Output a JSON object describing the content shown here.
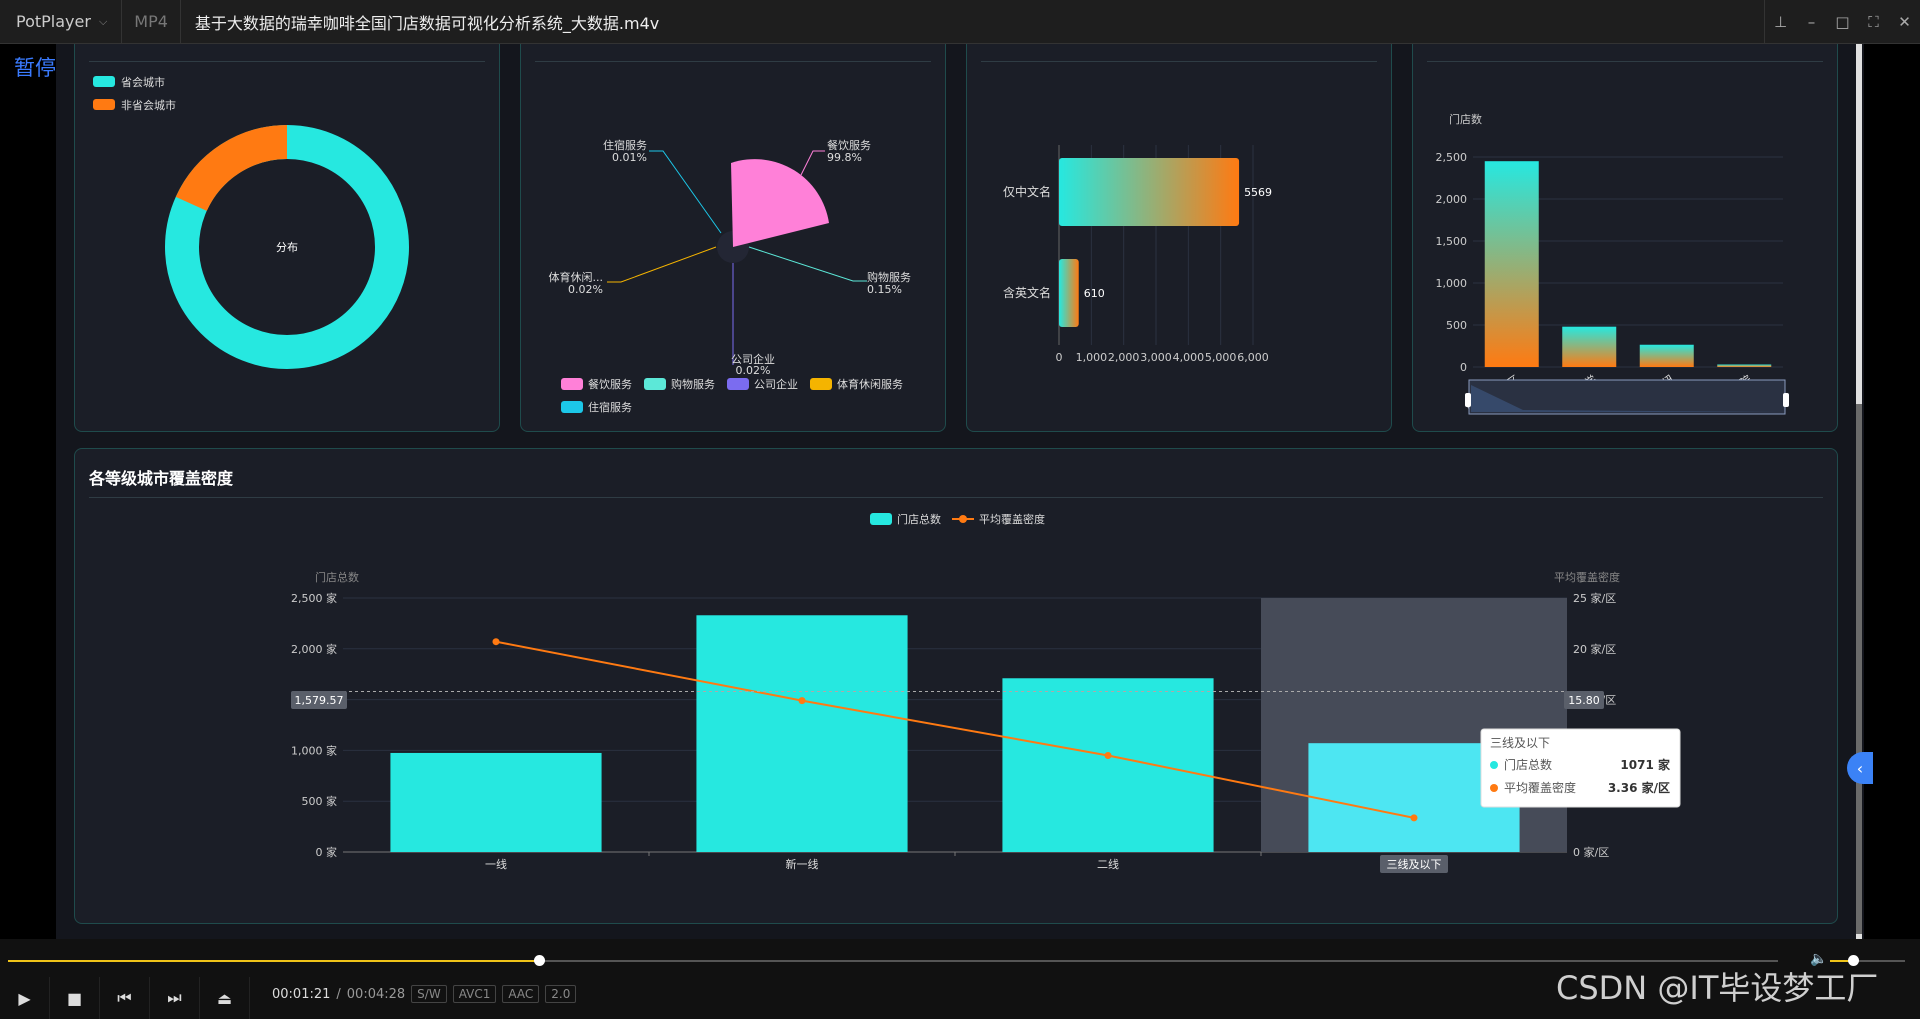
{
  "window": {
    "app_name": "PotPlayer",
    "format": "MP4",
    "title": "基于大数据的瑞幸咖啡全国门店数据可视化分析系统_大数据.m4v",
    "status": "暂停"
  },
  "panels": {
    "donut": {
      "legend": [
        "省会城市",
        "非省会城市"
      ],
      "center_label": "分布",
      "colors": [
        "#26e8e0",
        "#ff7a12"
      ]
    },
    "rose": {
      "labels": [
        {
          "name": "住宿服务",
          "pct": "0.01%"
        },
        {
          "name": "餐饮服务",
          "pct": "99.8%"
        },
        {
          "name": "体育休闲...",
          "pct": "0.02%"
        },
        {
          "name": "购物服务",
          "pct": "0.15%"
        },
        {
          "name": "公司企业",
          "pct": "0.02%"
        }
      ],
      "legend": [
        "餐饮服务",
        "购物服务",
        "公司企业",
        "体育休闲服务",
        "住宿服务"
      ],
      "legend_colors": [
        "#ff80d8",
        "#5ce8d8",
        "#7b6cf0",
        "#f5b400",
        "#1cc7e8"
      ]
    },
    "hbar": {
      "categories": [
        "仅中文名",
        "含英文名"
      ],
      "values": [
        5569,
        610
      ],
      "ticks": [
        "0",
        "1,000",
        "2,000",
        "3,000",
        "4,000",
        "5,000",
        "6,000"
      ]
    },
    "vbar": {
      "axis_name": "门店数",
      "ticks": [
        "0",
        "500",
        "1,000",
        "1,500",
        "2,000",
        "2,500"
      ],
      "categories": [
        "写字楼/园区",
        "大学",
        "交通枢纽",
        "医院"
      ],
      "values": [
        2450,
        480,
        265,
        30
      ]
    }
  },
  "chart_data": {
    "type": "bar",
    "title": "各等级城市覆盖密度",
    "categories": [
      "一线",
      "新一线",
      "二线",
      "三线及以下"
    ],
    "series": [
      {
        "name": "门店总数",
        "type": "bar",
        "values": [
          975,
          2330,
          1710,
          1071
        ]
      },
      {
        "name": "平均覆盖密度",
        "type": "line",
        "values": [
          20.7,
          14.9,
          9.5,
          3.36
        ]
      }
    ],
    "ylabel_left": "门店总数",
    "ylabel_right": "平均覆盖密度",
    "ylim_left": [
      0,
      2500
    ],
    "ylim_right": [
      0,
      25
    ],
    "left_ticks": [
      "0 家",
      "500 家",
      "1,000 家",
      "1,500 家",
      "2,000 家",
      "2,500 家"
    ],
    "right_ticks": [
      "0 家/区",
      "5 家/区",
      "10 家/区",
      "15 家/区",
      "20 家/区",
      "25 家/区"
    ],
    "crosshair_left_label": "1,579.57",
    "crosshair_right_label": "15.80",
    "highlighted_category": "三线及以下",
    "tooltip": {
      "title": "三线及以下",
      "rows": [
        {
          "name": "门店总数",
          "value": "1071 家"
        },
        {
          "name": "平均覆盖密度",
          "value": "3.36 家/区"
        }
      ]
    },
    "colors": {
      "bar": "#26e8e0",
      "bar_highlight": "#4de6f2",
      "line": "#ff7a12"
    }
  },
  "player": {
    "time_current": "00:01:21",
    "time_separator": "/",
    "time_total": "00:04:28",
    "progress": 0.3,
    "volume": 0.3,
    "badges": [
      "S/W",
      "AVC1",
      "AAC",
      "2.0"
    ],
    "watermark": "CSDN @IT毕设梦工厂"
  }
}
